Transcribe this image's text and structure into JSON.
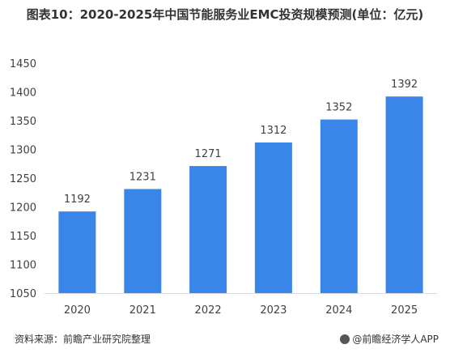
{
  "title": "图表10：2020-2025年中国节能服务业EMC投资规模预测(单位：亿元)",
  "footer": {
    "source": "资料来源：前瞻产业研究院整理",
    "brand": "@前瞻经济学人APP"
  },
  "colors": {
    "bar": "#3a86e8",
    "axis": "#d9d9d9",
    "text": "#404040"
  },
  "chart_data": {
    "type": "bar",
    "title": "图表10：2020-2025年中国节能服务业EMC投资规模预测(单位：亿元)",
    "categories": [
      "2020",
      "2021",
      "2022",
      "2023",
      "2024",
      "2025"
    ],
    "values": [
      1192,
      1231,
      1271,
      1312,
      1352,
      1392
    ],
    "ylim": [
      1050,
      1450
    ],
    "yticks": [
      1050,
      1100,
      1150,
      1200,
      1250,
      1300,
      1350,
      1400,
      1450
    ],
    "xlabel": "",
    "ylabel": "",
    "grid": false,
    "data_labels": true
  }
}
